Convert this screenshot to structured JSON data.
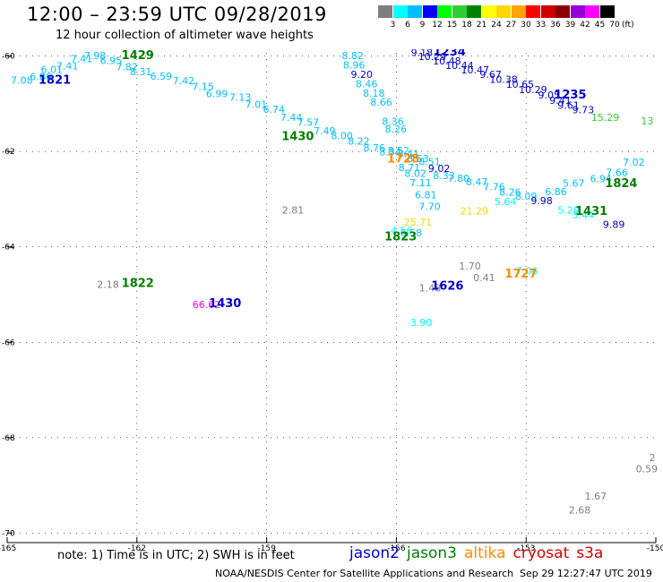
{
  "title": "12:00 – 23:59 UTC 09/28/2019",
  "subtitle": "12 hour collection of altimeter wave heights",
  "note": "note: 1) Time is in UTC; 2) SWH is in feet",
  "credit": "NOAA/NESDIS Center for Satellite Applications and Research",
  "timestamp": "Sep 29 12:27:47 UTC 2019",
  "colorbar": {
    "colors": [
      "#7f7f7f",
      "#00ffff",
      "#00bfff",
      "#0000ff",
      "#00ff00",
      "#32cd32",
      "#008000",
      "#ffff00",
      "#ffd700",
      "#ffa500",
      "#ff0000",
      "#cd0000",
      "#8b0000",
      "#9400d3",
      "#ff00ff",
      "#000000"
    ],
    "labels": [
      "3",
      "6",
      "9",
      "12",
      "15",
      "18",
      "21",
      "24",
      "27",
      "30",
      "33",
      "36",
      "39",
      "42",
      "45",
      "70"
    ],
    "unit": "(ft)"
  },
  "legend": [
    {
      "name": "jason2",
      "color": "#0000cc"
    },
    {
      "name": "jason3",
      "color": "#008000"
    },
    {
      "name": "altika",
      "color": "#ff8c00"
    },
    {
      "name": "cryosat",
      "color": "#dd0000"
    },
    {
      "name": "s3a",
      "color": "#cc0000"
    }
  ],
  "chart_data": {
    "type": "scatter",
    "xlim": [
      -165,
      -150
    ],
    "ylim": [
      -70.2,
      -59.8
    ],
    "x_ticks": [
      "-165",
      "-162",
      "-159",
      "-156",
      "-153",
      "-150"
    ],
    "y_ticks": [
      "-60",
      "-62",
      "-64",
      "-66",
      "-68",
      "-70"
    ],
    "time_labels": [
      {
        "text": "1821",
        "x": -163.9,
        "y": -60.58,
        "color": "#0000cc"
      },
      {
        "text": "1429",
        "x": -161.98,
        "y": -60.06,
        "color": "#008000"
      },
      {
        "text": "1234",
        "x": -154.77,
        "y": -59.99,
        "color": "#0000cc"
      },
      {
        "text": "1235",
        "x": -151.98,
        "y": -60.89,
        "color": "#0000cc"
      },
      {
        "text": "1430",
        "x": -158.28,
        "y": -61.76,
        "color": "#008000"
      },
      {
        "text": "1728",
        "x": -155.84,
        "y": -62.23,
        "color": "#ff8c00"
      },
      {
        "text": "1824",
        "x": -150.8,
        "y": -62.75,
        "color": "#008000"
      },
      {
        "text": "1431",
        "x": -151.49,
        "y": -63.33,
        "color": "#008000"
      },
      {
        "text": "1823",
        "x": -155.9,
        "y": -63.86,
        "color": "#008000"
      },
      {
        "text": "1822",
        "x": -161.98,
        "y": -64.84,
        "color": "#008000"
      },
      {
        "text": "1430",
        "x": -159.96,
        "y": -65.26,
        "color": "#0000cc"
      },
      {
        "text": "1626",
        "x": -154.82,
        "y": -64.9,
        "color": "#0000cc"
      },
      {
        "text": "1727",
        "x": -153.12,
        "y": -64.64,
        "color": "#ff8c00"
      }
    ],
    "points": [
      {
        "x": -164.66,
        "y": -60.58,
        "v": "7.08",
        "c": "#00bfff"
      },
      {
        "x": -164.22,
        "y": -60.5,
        "v": "6.86",
        "c": "#00bfff"
      },
      {
        "x": -163.97,
        "y": -60.35,
        "v": "6.01",
        "c": "#00bfff"
      },
      {
        "x": -163.61,
        "y": -60.28,
        "v": "7.41",
        "c": "#00bfff"
      },
      {
        "x": -163.28,
        "y": -60.13,
        "v": "7.41",
        "c": "#00bfff"
      },
      {
        "x": -162.97,
        "y": -60.06,
        "v": "7.98",
        "c": "#00bfff"
      },
      {
        "x": -162.6,
        "y": -60.17,
        "v": "6.95",
        "c": "#00bfff"
      },
      {
        "x": -162.23,
        "y": -60.3,
        "v": "7.82",
        "c": "#00bfff"
      },
      {
        "x": -161.91,
        "y": -60.4,
        "v": "8.31",
        "c": "#00bfff"
      },
      {
        "x": -161.44,
        "y": -60.49,
        "v": "6.59",
        "c": "#00bfff"
      },
      {
        "x": -160.92,
        "y": -60.59,
        "v": "7.42",
        "c": "#00bfff"
      },
      {
        "x": -160.47,
        "y": -60.71,
        "v": "7.15",
        "c": "#00bfff"
      },
      {
        "x": -160.15,
        "y": -60.86,
        "v": "6.99",
        "c": "#00bfff"
      },
      {
        "x": -159.61,
        "y": -60.94,
        "v": "7.13",
        "c": "#00bfff"
      },
      {
        "x": -159.24,
        "y": -61.09,
        "v": "7.01",
        "c": "#00bfff"
      },
      {
        "x": -158.83,
        "y": -61.19,
        "v": "6.74",
        "c": "#00bfff"
      },
      {
        "x": -158.43,
        "y": -61.36,
        "v": "7.44",
        "c": "#00bfff"
      },
      {
        "x": -158.04,
        "y": -61.46,
        "v": "7.57",
        "c": "#00bfff"
      },
      {
        "x": -157.66,
        "y": -61.64,
        "v": "7.49",
        "c": "#00bfff"
      },
      {
        "x": -157.26,
        "y": -61.74,
        "v": "8.00",
        "c": "#00bfff"
      },
      {
        "x": -156.87,
        "y": -61.86,
        "v": "8.22",
        "c": "#00bfff"
      },
      {
        "x": -156.51,
        "y": -62.0,
        "v": "8.76",
        "c": "#00bfff"
      },
      {
        "x": -156.14,
        "y": -62.08,
        "v": "8.34",
        "c": "#00bfff"
      },
      {
        "x": -155.72,
        "y": -62.12,
        "v": "8.41",
        "c": "#00bfff"
      },
      {
        "x": -155.5,
        "y": -62.22,
        "v": "8.53",
        "c": "#00bfff"
      },
      {
        "x": -155.23,
        "y": -62.29,
        "v": "8.51",
        "c": "#00bfff"
      },
      {
        "x": -157.01,
        "y": -60.06,
        "v": "8.82",
        "c": "#00bfff"
      },
      {
        "x": -156.98,
        "y": -60.26,
        "v": "8.96",
        "c": "#00bfff"
      },
      {
        "x": -156.8,
        "y": -60.46,
        "v": "9.20",
        "c": "#0000cc"
      },
      {
        "x": -156.69,
        "y": -60.65,
        "v": "8.46",
        "c": "#00bfff"
      },
      {
        "x": -156.52,
        "y": -60.85,
        "v": "8.18",
        "c": "#00bfff"
      },
      {
        "x": -156.35,
        "y": -61.04,
        "v": "8.66",
        "c": "#00bfff"
      },
      {
        "x": -156.08,
        "y": -61.44,
        "v": "8.36",
        "c": "#00bfff"
      },
      {
        "x": -156.01,
        "y": -61.6,
        "v": "8.26",
        "c": "#00bfff"
      },
      {
        "x": -155.95,
        "y": -62.05,
        "v": "8.52",
        "c": "#00bfff"
      },
      {
        "x": -155.7,
        "y": -62.41,
        "v": "8.71",
        "c": "#00bfff"
      },
      {
        "x": -155.56,
        "y": -62.53,
        "v": "8.02",
        "c": "#00bfff"
      },
      {
        "x": -155.44,
        "y": -62.73,
        "v": "7.11",
        "c": "#00bfff"
      },
      {
        "x": -155.32,
        "y": -62.98,
        "v": "6.81",
        "c": "#00bfff"
      },
      {
        "x": -155.23,
        "y": -63.23,
        "v": "7.70",
        "c": "#00bfff"
      },
      {
        "x": -155.01,
        "y": -62.43,
        "v": "9.02",
        "c": "#0000cc"
      },
      {
        "x": -154.9,
        "y": -62.58,
        "v": "8.33",
        "c": "#00bfff"
      },
      {
        "x": -154.56,
        "y": -62.63,
        "v": "7.80",
        "c": "#00bfff"
      },
      {
        "x": -154.14,
        "y": -62.71,
        "v": "8.47",
        "c": "#00bfff"
      },
      {
        "x": -153.74,
        "y": -62.81,
        "v": "7.76",
        "c": "#00bfff"
      },
      {
        "x": -153.37,
        "y": -62.93,
        "v": "8.26",
        "c": "#00bfff"
      },
      {
        "x": -153.0,
        "y": -63.01,
        "v": "8.09",
        "c": "#00bfff"
      },
      {
        "x": -152.64,
        "y": -63.1,
        "v": "9.98",
        "c": "#0000cc"
      },
      {
        "x": -152.31,
        "y": -62.92,
        "v": "6.86",
        "c": "#00bfff"
      },
      {
        "x": -151.9,
        "y": -62.74,
        "v": "5.67",
        "c": "#00bfff"
      },
      {
        "x": -151.27,
        "y": -62.64,
        "v": "6.94",
        "c": "#00bfff"
      },
      {
        "x": -150.9,
        "y": -62.51,
        "v": "7.66",
        "c": "#00bfff"
      },
      {
        "x": -150.51,
        "y": -62.3,
        "v": "7.02",
        "c": "#00bfff"
      },
      {
        "x": -153.48,
        "y": -63.12,
        "v": "5.64",
        "c": "#00ffff"
      },
      {
        "x": -152.02,
        "y": -63.3,
        "v": "5.29",
        "c": "#00ffff"
      },
      {
        "x": -151.68,
        "y": -63.4,
        "v": "5.44",
        "c": "#00ffff"
      },
      {
        "x": -150.97,
        "y": -63.6,
        "v": "9.89",
        "c": "#0000cc"
      },
      {
        "x": -154.2,
        "y": -63.32,
        "v": "21.29",
        "c": "#ffd700"
      },
      {
        "x": -155.5,
        "y": -63.55,
        "v": "25.71",
        "c": "#ffd700"
      },
      {
        "x": -155.88,
        "y": -63.73,
        "v": "4.56",
        "c": "#00ffff"
      },
      {
        "x": -155.66,
        "y": -63.78,
        "v": "6.58",
        "c": "#00bfff"
      },
      {
        "x": -155.41,
        "y": -60.0,
        "v": "9.18",
        "c": "#0000cc"
      },
      {
        "x": -155.17,
        "y": -60.08,
        "v": "10.29",
        "c": "#0000cc"
      },
      {
        "x": -154.83,
        "y": -60.18,
        "v": "10.48",
        "c": "#0000cc"
      },
      {
        "x": -154.54,
        "y": -60.27,
        "v": "10.44",
        "c": "#0000cc"
      },
      {
        "x": -154.18,
        "y": -60.36,
        "v": "10.47",
        "c": "#0000cc"
      },
      {
        "x": -153.82,
        "y": -60.46,
        "v": "9.67",
        "c": "#0000cc"
      },
      {
        "x": -153.52,
        "y": -60.56,
        "v": "10.38",
        "c": "#0000cc"
      },
      {
        "x": -153.14,
        "y": -60.66,
        "v": "10.65",
        "c": "#0000cc"
      },
      {
        "x": -152.84,
        "y": -60.78,
        "v": "10.29",
        "c": "#0000cc"
      },
      {
        "x": -152.47,
        "y": -60.89,
        "v": "9.05",
        "c": "#0000cc"
      },
      {
        "x": -152.21,
        "y": -61.0,
        "v": "9.41",
        "c": "#0000cc"
      },
      {
        "x": -152.02,
        "y": -61.1,
        "v": "9.61",
        "c": "#0000cc"
      },
      {
        "x": -151.68,
        "y": -61.2,
        "v": "9.73",
        "c": "#0000cc"
      },
      {
        "x": -151.17,
        "y": -61.36,
        "v": "15.29",
        "c": "#32cd32"
      },
      {
        "x": -150.2,
        "y": -61.43,
        "v": "13",
        "c": "#32cd32"
      },
      {
        "x": -158.39,
        "y": -63.3,
        "v": "2.81",
        "c": "#7f7f7f"
      },
      {
        "x": -162.67,
        "y": -64.86,
        "v": "2.18",
        "c": "#7f7f7f"
      },
      {
        "x": -160.39,
        "y": -65.28,
        "v": "66.62",
        "c": "#ff00ff"
      },
      {
        "x": -154.3,
        "y": -64.47,
        "v": "1.70",
        "c": "#7f7f7f"
      },
      {
        "x": -153.97,
        "y": -64.72,
        "v": "0.41",
        "c": "#7f7f7f"
      },
      {
        "x": -155.22,
        "y": -64.93,
        "v": "1.48",
        "c": "#7f7f7f"
      },
      {
        "x": -152.98,
        "y": -64.58,
        "v": "7.06",
        "c": "#00ffff"
      },
      {
        "x": -155.43,
        "y": -65.66,
        "v": "3.90",
        "c": "#00ffff"
      },
      {
        "x": -150.08,
        "y": -68.49,
        "v": "2",
        "c": "#7f7f7f"
      },
      {
        "x": -150.21,
        "y": -68.73,
        "v": "0.59",
        "c": "#7f7f7f"
      },
      {
        "x": -151.39,
        "y": -69.3,
        "v": "1.67",
        "c": "#7f7f7f"
      },
      {
        "x": -151.76,
        "y": -69.59,
        "v": "2.68",
        "c": "#7f7f7f"
      }
    ]
  }
}
